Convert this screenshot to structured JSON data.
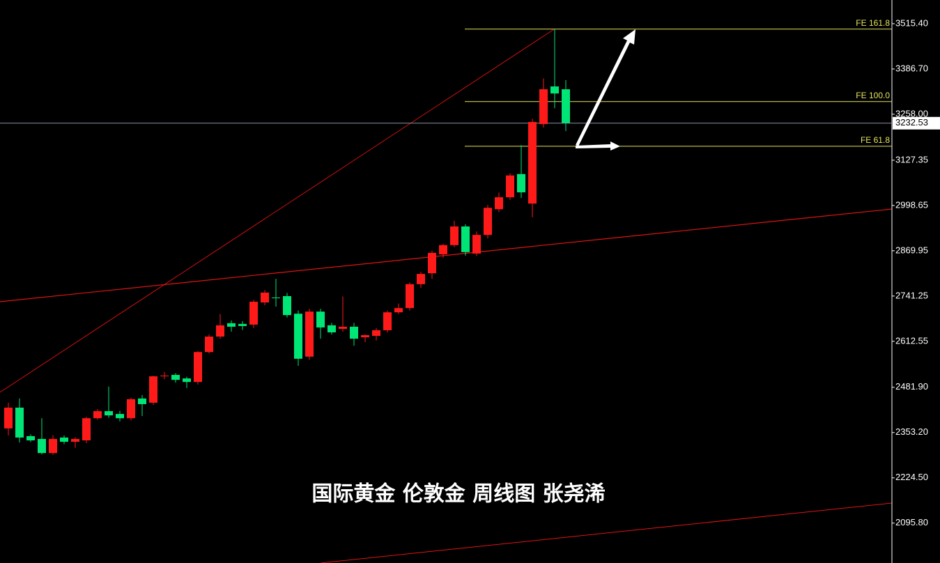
{
  "chart_data": {
    "type": "candlestick",
    "annotation": "国际黄金 伦敦金 周线图 张尧浠",
    "open": [
      2365,
      2424,
      2343,
      2335,
      2295,
      2339,
      2327,
      2331,
      2394,
      2414,
      2406,
      2394,
      2450,
      2438,
      2513,
      2517,
      2507,
      2497,
      2582,
      2626,
      2664,
      2662,
      2660,
      2723,
      2737,
      2741,
      2691,
      2569,
      2697,
      2658,
      2648,
      2654,
      2624,
      2628,
      2644,
      2695,
      2707,
      2775,
      2806,
      2860,
      2886,
      2939,
      2862,
      2915,
      2988,
      3022,
      3088,
      3004,
      3230,
      3337,
      3329
    ],
    "high": [
      2438,
      2450,
      2348,
      2394,
      2345,
      2345,
      2340,
      2398,
      2420,
      2484,
      2415,
      2452,
      2460,
      2515,
      2525,
      2522,
      2512,
      2585,
      2632,
      2690,
      2672,
      2670,
      2730,
      2758,
      2790,
      2750,
      2700,
      2705,
      2705,
      2665,
      2740,
      2665,
      2632,
      2650,
      2700,
      2720,
      2780,
      2810,
      2870,
      2890,
      2955,
      2945,
      2925,
      3000,
      3035,
      3090,
      3170,
      3245,
      3360,
      3500,
      3355
    ],
    "low": [
      2345,
      2325,
      2326,
      2291,
      2290,
      2320,
      2310,
      2323,
      2390,
      2395,
      2385,
      2388,
      2400,
      2432,
      2505,
      2495,
      2480,
      2490,
      2578,
      2620,
      2640,
      2645,
      2650,
      2715,
      2711,
      2680,
      2543,
      2560,
      2620,
      2632,
      2640,
      2600,
      2610,
      2615,
      2638,
      2690,
      2700,
      2765,
      2790,
      2850,
      2880,
      2856,
      2855,
      2905,
      2980,
      3015,
      3020,
      2965,
      3220,
      3275,
      3210
    ],
    "close": [
      2424,
      2339,
      2331,
      2295,
      2335,
      2327,
      2335,
      2394,
      2414,
      2402,
      2394,
      2448,
      2434,
      2513,
      2515,
      2503,
      2497,
      2582,
      2626,
      2658,
      2654,
      2656,
      2725,
      2751,
      2735,
      2687,
      2563,
      2697,
      2652,
      2638,
      2654,
      2620,
      2630,
      2644,
      2695,
      2707,
      2775,
      2804,
      2864,
      2886,
      2939,
      2866,
      2915,
      2992,
      3022,
      3084,
      3036,
      3236,
      3329,
      3317,
      3233
    ],
    "up_color": "#ff1a1a",
    "down_color": "#00e676",
    "levels": [
      {
        "value": 3500,
        "label": "FE 161.8"
      },
      {
        "value": 3294,
        "label": "FE 100.0"
      },
      {
        "value": 3167,
        "label": "FE 61.8"
      }
    ],
    "level_color": "#e6e65c",
    "last_price": 3232.53,
    "ylim": [
      1982.4,
      3582.7
    ],
    "yticks": [
      {
        "value": 3515.4,
        "label": "3515.40"
      },
      {
        "value": 3386.7,
        "label": "3386.70"
      },
      {
        "value": 3258,
        "label": "3258.00"
      },
      {
        "value": 3127.35,
        "label": "3127.35"
      },
      {
        "value": 2998.65,
        "label": "2998.65"
      },
      {
        "value": 2869.95,
        "label": "2869.95"
      },
      {
        "value": 2741.25,
        "label": "2741.25"
      },
      {
        "value": 2612.55,
        "label": "2612.55"
      },
      {
        "value": 2481.9,
        "label": "2481.90"
      },
      {
        "value": 2353.2,
        "label": "2353.20"
      },
      {
        "value": 2224.5,
        "label": "2224.50"
      },
      {
        "value": 2095.8,
        "label": "2095.80"
      }
    ]
  }
}
